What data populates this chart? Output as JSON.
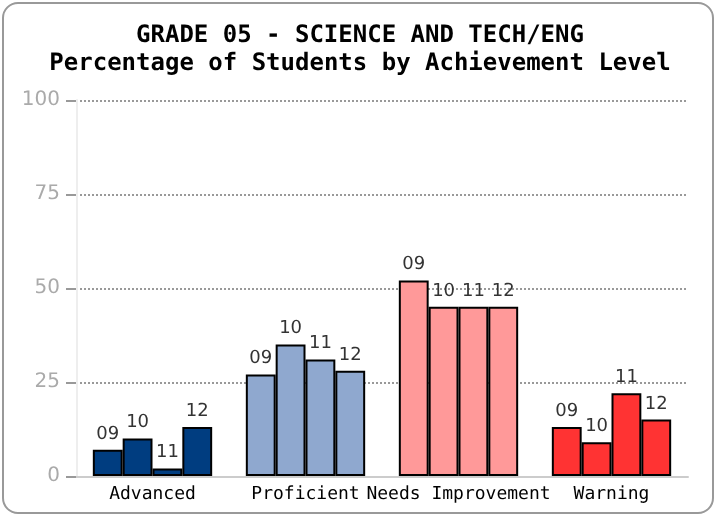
{
  "chart_data": {
    "type": "bar",
    "title": "GRADE 05 - SCIENCE AND TECH/ENG",
    "subtitle": "Percentage of Students by Achievement Level",
    "categories": [
      "Advanced",
      "Proficient",
      "Needs Improvement",
      "Warning"
    ],
    "series": [
      {
        "name": "09",
        "colors": [
          "#003d80",
          "#8fa8cf",
          "#ff9999",
          "#ff3333"
        ],
        "values": [
          7,
          27,
          52,
          13
        ]
      },
      {
        "name": "10",
        "colors": [
          "#003d80",
          "#8fa8cf",
          "#ff9999",
          "#ff3333"
        ],
        "values": [
          10,
          35,
          45,
          9
        ]
      },
      {
        "name": "11",
        "colors": [
          "#003d80",
          "#8fa8cf",
          "#ff9999",
          "#ff3333"
        ],
        "values": [
          2,
          31,
          45,
          22
        ]
      },
      {
        "name": "12",
        "colors": [
          "#003d80",
          "#8fa8cf",
          "#ff9999",
          "#ff3333"
        ],
        "values": [
          13,
          28,
          45,
          15
        ]
      }
    ],
    "ylim": [
      0,
      100
    ],
    "yticks": [
      0,
      25,
      50,
      75,
      100
    ],
    "grid": "y",
    "legend": false
  }
}
